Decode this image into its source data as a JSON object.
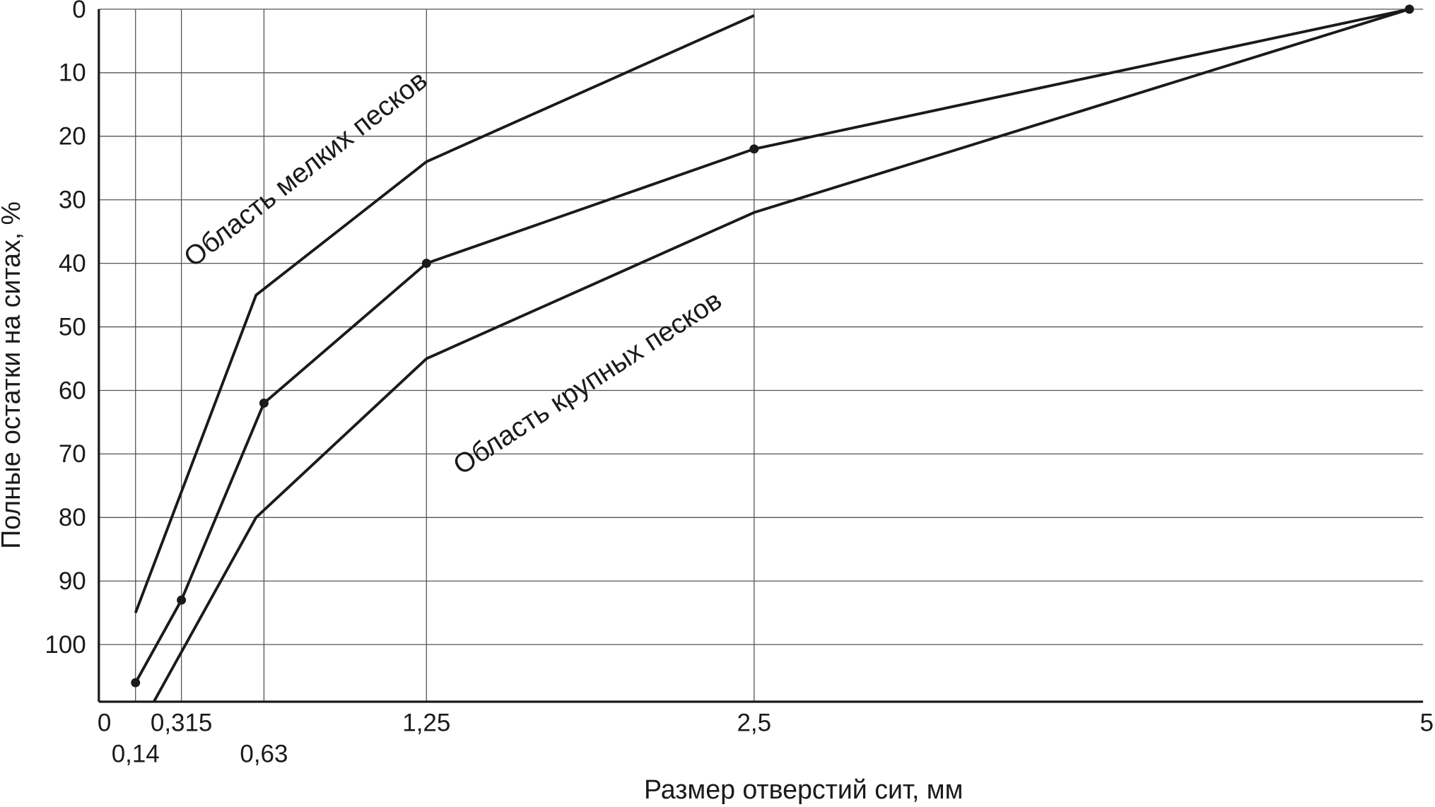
{
  "chart_data": {
    "type": "line",
    "x_label": "Размер отверстий сит, мм",
    "y_label": "Полные остатки на ситах, %",
    "xlim": [
      0,
      5
    ],
    "xticks": [
      0,
      {
        "value": 0.14,
        "label": "0,14"
      },
      {
        "value": 0.315,
        "label": "0,315"
      },
      {
        "value": 0.63,
        "label": "0,63"
      },
      {
        "value": 1.25,
        "label": "1,25"
      },
      {
        "value": 2.5,
        "label": "2,5"
      },
      5
    ],
    "ylim": [
      0,
      109
    ],
    "y_inverted": true,
    "yticks": [
      0,
      10,
      20,
      30,
      40,
      50,
      60,
      70,
      80,
      90,
      100
    ],
    "grid": true,
    "series": [
      {
        "color": "#1a1a1a",
        "x": [
          0.14,
          0.6,
          1.25,
          2.5
        ],
        "values": [
          95,
          45,
          24,
          1
        ]
      },
      {
        "color": "#1a1a1a",
        "markers": true,
        "x": [
          0.14,
          0.315,
          0.63,
          1.25,
          2.5,
          5
        ],
        "values": [
          106,
          93,
          62,
          40,
          22,
          0
        ]
      },
      {
        "color": "#1a1a1a",
        "x": [
          0.21,
          0.6,
          1.25,
          2.5,
          5
        ],
        "values": [
          109,
          80,
          55,
          32,
          0
        ]
      }
    ],
    "annotations": [
      "Область мелких песков",
      "Область крупных песков"
    ]
  }
}
